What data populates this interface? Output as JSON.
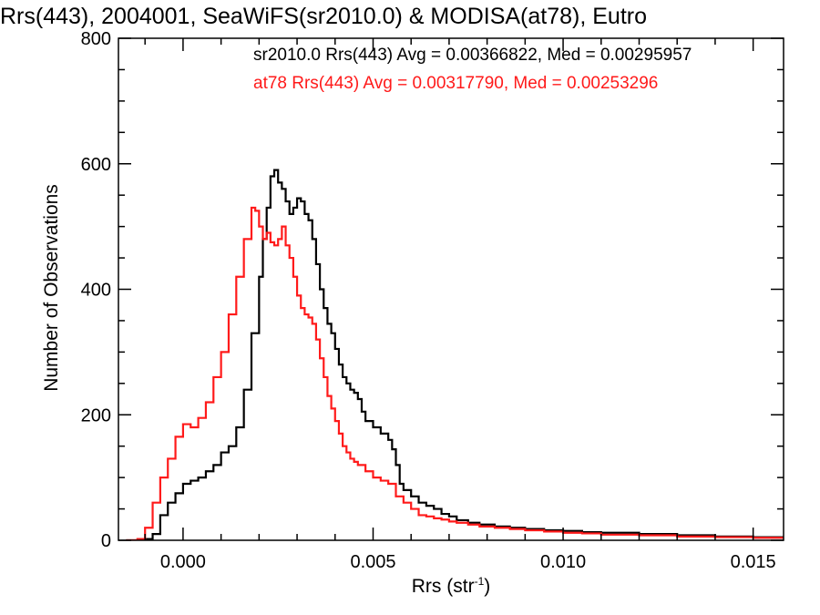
{
  "chart_data": {
    "type": "line",
    "title": "Rrs(443), 2004001, SeaWiFS(sr2010.0) & MODISA(at78), Eutro",
    "xlabel": "Rrs (str",
    "xlabel_exponent": "-1",
    "xlabel_close": ")",
    "ylabel": "Number of Observations",
    "xlim": [
      -0.0017,
      0.0158
    ],
    "ylim": [
      0,
      800
    ],
    "grid": false,
    "legend_placement": "top-right",
    "x_ticks": [
      {
        "value": 0.0,
        "label": "0.000"
      },
      {
        "value": 0.005,
        "label": "0.005"
      },
      {
        "value": 0.01,
        "label": "0.010"
      },
      {
        "value": 0.015,
        "label": "0.015"
      }
    ],
    "y_ticks": [
      {
        "value": 0,
        "label": "0"
      },
      {
        "value": 200,
        "label": "200"
      },
      {
        "value": 400,
        "label": "400"
      },
      {
        "value": 600,
        "label": "600"
      },
      {
        "value": 800,
        "label": "800"
      }
    ],
    "series": [
      {
        "name": "sr2010.0",
        "legend": "sr2010.0 Rrs(443) Avg = 0.00366822, Med = 0.00295957",
        "color": "#000000",
        "points": [
          [
            -0.0015,
            0
          ],
          [
            -0.001,
            2
          ],
          [
            -0.0008,
            10
          ],
          [
            -0.0006,
            40
          ],
          [
            -0.0004,
            60
          ],
          [
            -0.0002,
            75
          ],
          [
            0.0,
            90
          ],
          [
            0.0002,
            95
          ],
          [
            0.0004,
            100
          ],
          [
            0.0006,
            110
          ],
          [
            0.0008,
            120
          ],
          [
            0.001,
            140
          ],
          [
            0.0012,
            150
          ],
          [
            0.0014,
            180
          ],
          [
            0.0016,
            240
          ],
          [
            0.0018,
            330
          ],
          [
            0.002,
            420
          ],
          [
            0.0021,
            480
          ],
          [
            0.0022,
            530
          ],
          [
            0.0023,
            580
          ],
          [
            0.0024,
            590
          ],
          [
            0.0025,
            570
          ],
          [
            0.0026,
            560
          ],
          [
            0.0027,
            540
          ],
          [
            0.0028,
            520
          ],
          [
            0.0029,
            530
          ],
          [
            0.003,
            545
          ],
          [
            0.0031,
            540
          ],
          [
            0.0032,
            520
          ],
          [
            0.0033,
            510
          ],
          [
            0.0034,
            480
          ],
          [
            0.0035,
            440
          ],
          [
            0.0036,
            400
          ],
          [
            0.0037,
            370
          ],
          [
            0.0038,
            345
          ],
          [
            0.0039,
            330
          ],
          [
            0.004,
            305
          ],
          [
            0.0041,
            280
          ],
          [
            0.0042,
            260
          ],
          [
            0.0043,
            250
          ],
          [
            0.0044,
            240
          ],
          [
            0.0045,
            235
          ],
          [
            0.0046,
            225
          ],
          [
            0.0047,
            205
          ],
          [
            0.0048,
            190
          ],
          [
            0.005,
            180
          ],
          [
            0.0052,
            170
          ],
          [
            0.0054,
            160
          ],
          [
            0.0055,
            145
          ],
          [
            0.0056,
            120
          ],
          [
            0.0057,
            90
          ],
          [
            0.0058,
            80
          ],
          [
            0.006,
            70
          ],
          [
            0.0062,
            60
          ],
          [
            0.0064,
            55
          ],
          [
            0.0066,
            50
          ],
          [
            0.0068,
            42
          ],
          [
            0.007,
            38
          ],
          [
            0.0072,
            32
          ],
          [
            0.0075,
            28
          ],
          [
            0.0078,
            25
          ],
          [
            0.0082,
            22
          ],
          [
            0.0086,
            20
          ],
          [
            0.009,
            18
          ],
          [
            0.0095,
            16
          ],
          [
            0.01,
            15
          ],
          [
            0.0105,
            13
          ],
          [
            0.011,
            12
          ],
          [
            0.012,
            10
          ],
          [
            0.013,
            8
          ],
          [
            0.014,
            6
          ],
          [
            0.015,
            5
          ],
          [
            0.0158,
            5
          ]
        ]
      },
      {
        "name": "at78",
        "legend": "at78 Rrs(443) Avg = 0.00317790, Med = 0.00253296",
        "color": "#ff1a1a",
        "points": [
          [
            -0.0015,
            0
          ],
          [
            -0.0012,
            2
          ],
          [
            -0.001,
            20
          ],
          [
            -0.0008,
            60
          ],
          [
            -0.0006,
            100
          ],
          [
            -0.0004,
            130
          ],
          [
            -0.0002,
            165
          ],
          [
            0.0,
            185
          ],
          [
            0.0002,
            180
          ],
          [
            0.0004,
            195
          ],
          [
            0.0006,
            220
          ],
          [
            0.0008,
            260
          ],
          [
            0.001,
            300
          ],
          [
            0.0012,
            360
          ],
          [
            0.0014,
            420
          ],
          [
            0.0016,
            480
          ],
          [
            0.0018,
            530
          ],
          [
            0.0019,
            525
          ],
          [
            0.002,
            500
          ],
          [
            0.0021,
            480
          ],
          [
            0.0022,
            490
          ],
          [
            0.0023,
            475
          ],
          [
            0.0024,
            470
          ],
          [
            0.0025,
            480
          ],
          [
            0.0026,
            500
          ],
          [
            0.0027,
            470
          ],
          [
            0.0028,
            450
          ],
          [
            0.0029,
            420
          ],
          [
            0.003,
            390
          ],
          [
            0.0031,
            370
          ],
          [
            0.0032,
            360
          ],
          [
            0.0033,
            355
          ],
          [
            0.0034,
            345
          ],
          [
            0.0035,
            320
          ],
          [
            0.0036,
            290
          ],
          [
            0.0037,
            260
          ],
          [
            0.0038,
            230
          ],
          [
            0.0039,
            210
          ],
          [
            0.004,
            190
          ],
          [
            0.0041,
            170
          ],
          [
            0.0042,
            150
          ],
          [
            0.0043,
            140
          ],
          [
            0.0044,
            130
          ],
          [
            0.0045,
            125
          ],
          [
            0.0046,
            120
          ],
          [
            0.0048,
            110
          ],
          [
            0.005,
            100
          ],
          [
            0.0052,
            95
          ],
          [
            0.0054,
            90
          ],
          [
            0.0056,
            70
          ],
          [
            0.0058,
            60
          ],
          [
            0.006,
            50
          ],
          [
            0.0062,
            40
          ],
          [
            0.0064,
            38
          ],
          [
            0.0066,
            35
          ],
          [
            0.0068,
            33
          ],
          [
            0.007,
            30
          ],
          [
            0.0072,
            28
          ],
          [
            0.0075,
            25
          ],
          [
            0.0078,
            22
          ],
          [
            0.0082,
            20
          ],
          [
            0.0086,
            18
          ],
          [
            0.009,
            16
          ],
          [
            0.0095,
            14
          ],
          [
            0.01,
            12
          ],
          [
            0.0105,
            11
          ],
          [
            0.011,
            9
          ],
          [
            0.012,
            8
          ],
          [
            0.013,
            6
          ],
          [
            0.014,
            5
          ],
          [
            0.015,
            4
          ],
          [
            0.0158,
            4
          ]
        ]
      }
    ]
  }
}
